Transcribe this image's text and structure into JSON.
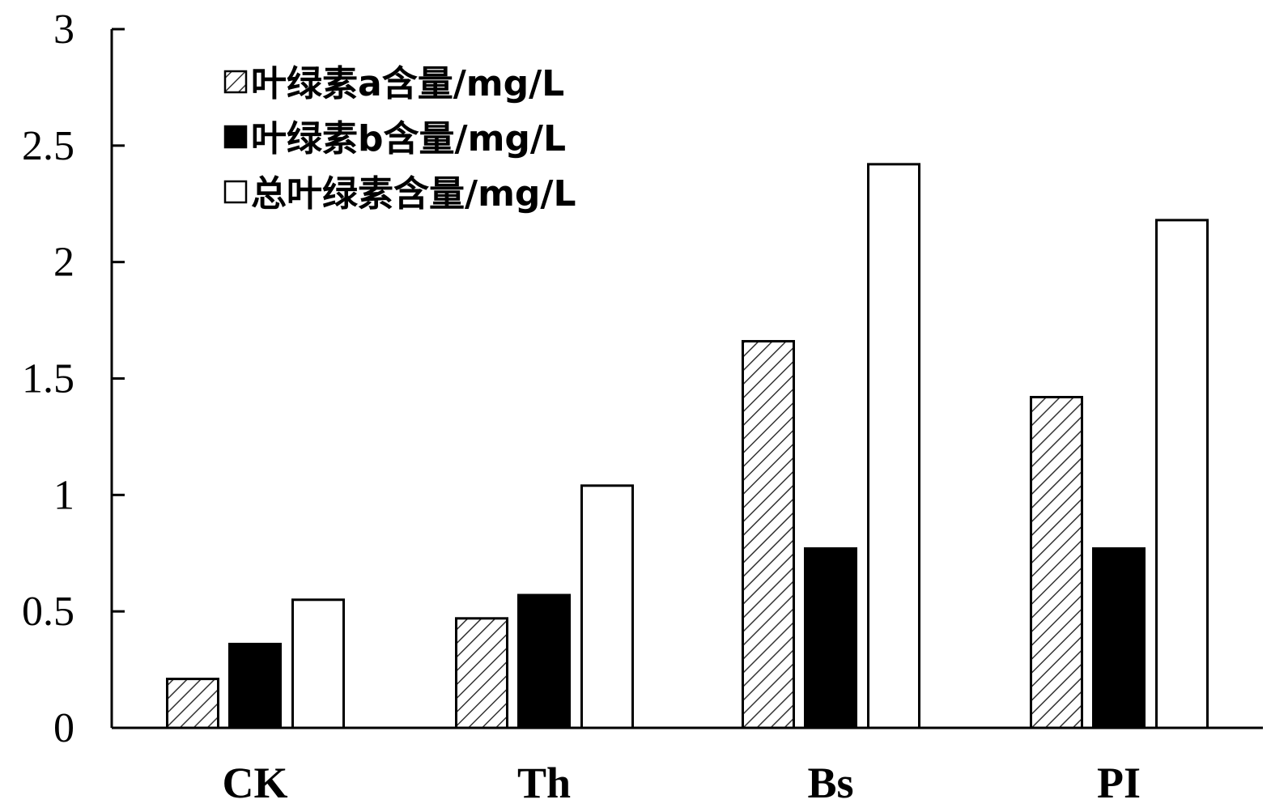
{
  "chart_data": {
    "type": "bar",
    "title": "",
    "xlabel": "",
    "ylabel": "",
    "ylim": [
      0,
      3
    ],
    "yticks": [
      "0",
      "0.5",
      "1",
      "1.5",
      "2",
      "2.5",
      "3"
    ],
    "categories": [
      "CK",
      "Th",
      "Bs",
      "PI"
    ],
    "series": [
      {
        "name": "叶绿素a含量/mg/L",
        "values": [
          0.21,
          0.47,
          1.66,
          1.42
        ],
        "fill": "hatched"
      },
      {
        "name": "叶绿素b含量/mg/L",
        "values": [
          0.36,
          0.57,
          0.77,
          0.77
        ],
        "fill": "#000000"
      },
      {
        "name": "总叶绿素含量/mg/L",
        "values": [
          0.55,
          1.04,
          2.42,
          2.18
        ],
        "fill": "#ffffff"
      }
    ],
    "legend_position": "top-left",
    "grid": false
  }
}
